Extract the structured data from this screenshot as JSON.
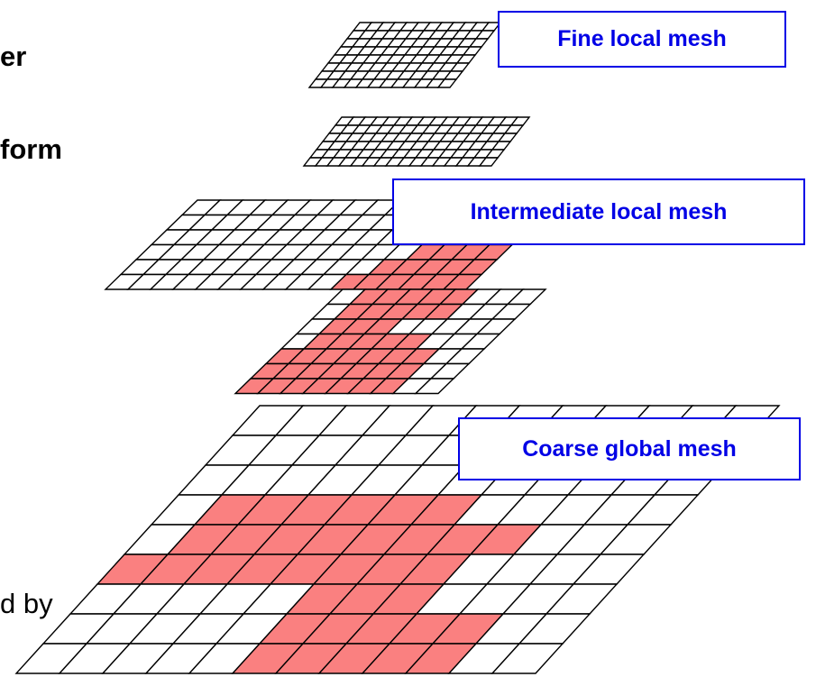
{
  "side_text": {
    "line1": "er",
    "line2": "form",
    "line3": "d by"
  },
  "labels": {
    "fine": "Fine local mesh",
    "intermediate": "Intermediate local mesh",
    "coarse": "Coarse global mesh"
  },
  "colors": {
    "label_border": "#0000e6",
    "label_text": "#0000e6",
    "refined_cell_fill": "#fa8080",
    "grid_line": "#000000"
  }
}
